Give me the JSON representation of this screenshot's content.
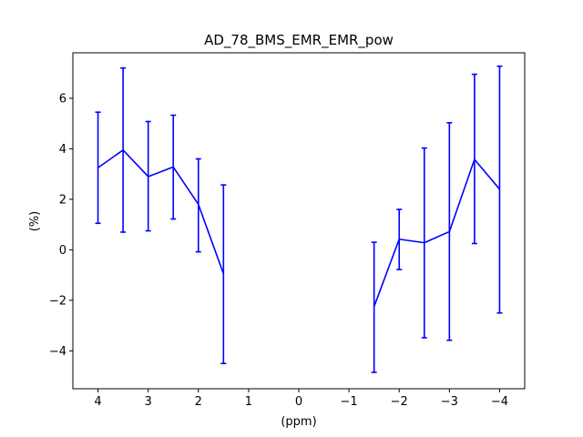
{
  "chart_data": {
    "type": "line",
    "title": "AD_78_BMS_EMR_EMR_pow",
    "xlabel": "(ppm)",
    "ylabel": "(%)",
    "xlim": [
      4.5,
      -4.5
    ],
    "ylim": [
      -5.5,
      7.8
    ],
    "x_ticks": [
      4,
      3,
      2,
      1,
      0,
      -1,
      -2,
      -3,
      -4
    ],
    "x_tick_labels": [
      "4",
      "3",
      "2",
      "1",
      "0",
      "−1",
      "−2",
      "−3",
      "−4"
    ],
    "y_ticks": [
      -4,
      -2,
      0,
      2,
      4,
      6
    ],
    "y_tick_labels": [
      "−4",
      "−2",
      "0",
      "2",
      "4",
      "6"
    ],
    "grid": false,
    "legend": "none",
    "series": [
      {
        "color": "#0000ff",
        "segments": [
          {
            "x": [
              4,
              3.5,
              3,
              2.5,
              2,
              1.5
            ],
            "y": [
              3.25,
              3.95,
              2.9,
              3.28,
              1.8,
              -0.95
            ],
            "err_low": [
              1.05,
              0.7,
              0.75,
              1.22,
              -0.08,
              -4.5
            ],
            "err_high": [
              5.45,
              7.2,
              5.08,
              5.33,
              3.6,
              2.57
            ]
          },
          {
            "x": [
              -1.5,
              -2,
              -2.5,
              -3,
              -3.5,
              -4
            ],
            "y": [
              -2.25,
              0.42,
              0.28,
              0.72,
              3.58,
              2.4
            ],
            "err_low": [
              -4.85,
              -0.78,
              -3.48,
              -3.58,
              0.25,
              -2.5
            ],
            "err_high": [
              0.3,
              1.6,
              4.03,
              5.03,
              6.95,
              7.27
            ]
          }
        ]
      }
    ]
  }
}
